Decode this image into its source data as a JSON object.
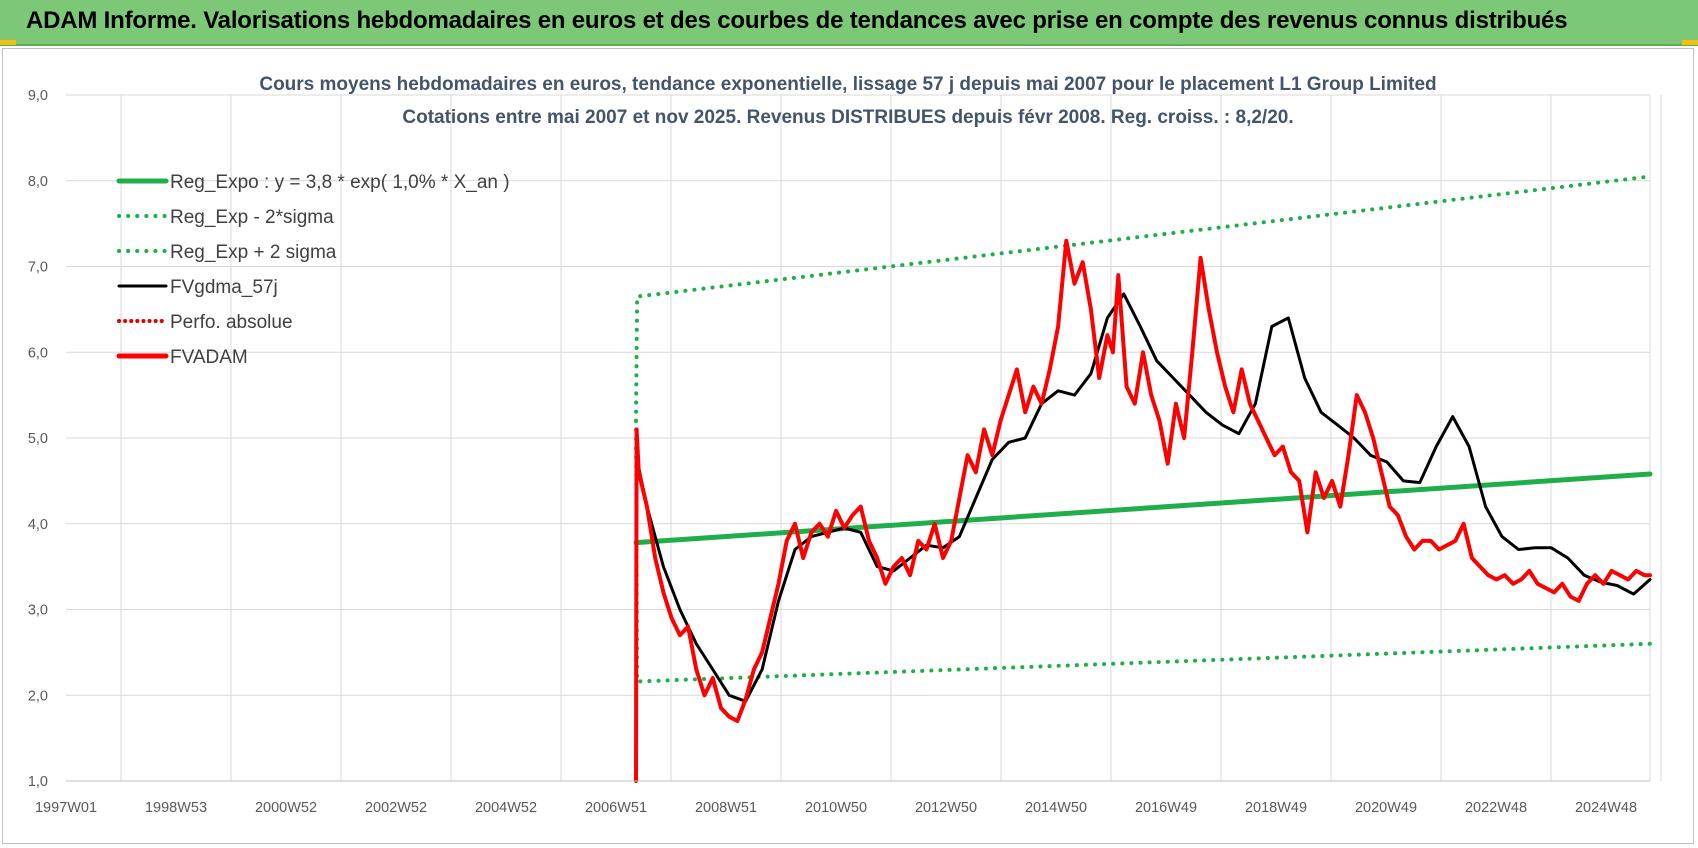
{
  "banner": {
    "title": "ADAM Informe. Valorisations hebdomadaires en euros et des courbes de tendances avec prise en compte des revenus connus distribués"
  },
  "colors": {
    "banner": "#7dc876",
    "reg_expo": "#1fae4a",
    "sigma": "#1fae4a",
    "fvgdma": "#000000",
    "perfo": "#e00000",
    "fvadam": "#ff0000",
    "grid": "#d9d9d9"
  },
  "chart_data": {
    "type": "line",
    "title": "Cours moyens hebdomadaires en euros, tendance exponentielle, lissage 57 j depuis mai 2007 pour le placement L1 Group Limited",
    "subtitle": "Cotations entre mai 2007 et nov 2025. Revenus DISTRIBUES depuis févr 2008. Reg. croiss. : 8,2/20.",
    "x_tick_labels": [
      "1997W01",
      "1998W53",
      "2000W52",
      "2002W52",
      "2004W52",
      "2006W51",
      "2008W51",
      "2010W50",
      "2012W50",
      "2014W50",
      "2016W49",
      "2018W49",
      "2020W49",
      "2022W48",
      "2024W48"
    ],
    "x_range": [
      1997.0,
      2025.9
    ],
    "ylim": [
      1.0,
      9.0
    ],
    "y_tick_labels": [
      "1,0",
      "2,0",
      "3,0",
      "4,0",
      "5,0",
      "6,0",
      "7,0",
      "8,0",
      "9,0"
    ],
    "y_ticks": [
      1,
      2,
      3,
      4,
      5,
      6,
      7,
      8,
      9
    ],
    "grid": true,
    "legend_position": "top-left",
    "series": [
      {
        "name": "Reg_Expo : y = 3,8 * exp( 1,0% *  X_an )",
        "style": "solid-thick",
        "x": [
          2007.4,
          2025.9
        ],
        "y": [
          3.78,
          4.58
        ]
      },
      {
        "name": "Reg_Exp - 2*sigma",
        "style": "dotted",
        "x": [
          2007.4,
          2007.42,
          2025.9
        ],
        "y": [
          5.2,
          2.16,
          2.6
        ]
      },
      {
        "name": "Reg_Exp + 2 sigma",
        "style": "dotted",
        "x": [
          2007.4,
          2007.42,
          2025.9
        ],
        "y": [
          5.2,
          6.65,
          8.05
        ]
      },
      {
        "name": "FVgdma_57j",
        "style": "solid",
        "x": [
          2007.4,
          2007.6,
          2007.9,
          2008.2,
          2008.5,
          2008.8,
          2009.1,
          2009.4,
          2009.7,
          2010.0,
          2010.3,
          2010.6,
          2010.9,
          2011.2,
          2011.5,
          2011.8,
          2012.1,
          2012.4,
          2012.7,
          2013.0,
          2013.3,
          2013.6,
          2013.9,
          2014.2,
          2014.5,
          2014.8,
          2015.1,
          2015.4,
          2015.7,
          2016.0,
          2016.3,
          2016.6,
          2016.9,
          2017.2,
          2017.5,
          2017.8,
          2018.1,
          2018.4,
          2018.7,
          2019.0,
          2019.3,
          2019.6,
          2019.9,
          2020.2,
          2020.5,
          2020.8,
          2021.1,
          2021.4,
          2021.7,
          2022.0,
          2022.3,
          2022.6,
          2022.9,
          2023.2,
          2023.5,
          2023.8,
          2024.1,
          2024.4,
          2024.7,
          2025.0,
          2025.3,
          2025.6,
          2025.9
        ],
        "y": [
          4.8,
          4.2,
          3.5,
          3.0,
          2.6,
          2.3,
          2.0,
          1.93,
          2.3,
          3.1,
          3.7,
          3.85,
          3.9,
          3.95,
          3.9,
          3.5,
          3.45,
          3.6,
          3.75,
          3.72,
          3.85,
          4.3,
          4.75,
          4.95,
          5.0,
          5.4,
          5.55,
          5.5,
          5.75,
          6.4,
          6.68,
          6.3,
          5.9,
          5.7,
          5.5,
          5.3,
          5.15,
          5.05,
          5.4,
          6.3,
          6.4,
          5.7,
          5.3,
          5.15,
          5.0,
          4.8,
          4.72,
          4.5,
          4.48,
          4.9,
          5.25,
          4.9,
          4.2,
          3.85,
          3.7,
          3.72,
          3.72,
          3.6,
          3.4,
          3.32,
          3.28,
          3.18,
          3.35
        ]
      },
      {
        "name": "Perfo. absolue",
        "style": "dotted",
        "x": [],
        "y": []
      },
      {
        "name": "FVADAM",
        "style": "solid-thick",
        "x": [
          2007.4,
          2007.41,
          2007.45,
          2007.6,
          2007.75,
          2007.9,
          2008.05,
          2008.2,
          2008.35,
          2008.5,
          2008.65,
          2008.8,
          2008.95,
          2009.1,
          2009.25,
          2009.4,
          2009.55,
          2009.7,
          2009.85,
          2010.0,
          2010.15,
          2010.3,
          2010.45,
          2010.6,
          2010.75,
          2010.9,
          2011.05,
          2011.2,
          2011.35,
          2011.5,
          2011.65,
          2011.8,
          2011.95,
          2012.1,
          2012.25,
          2012.4,
          2012.55,
          2012.7,
          2012.85,
          2013.0,
          2013.15,
          2013.3,
          2013.45,
          2013.6,
          2013.75,
          2013.9,
          2014.05,
          2014.2,
          2014.35,
          2014.5,
          2014.65,
          2014.8,
          2014.95,
          2015.1,
          2015.25,
          2015.4,
          2015.55,
          2015.7,
          2015.85,
          2016.0,
          2016.1,
          2016.2,
          2016.35,
          2016.5,
          2016.65,
          2016.8,
          2016.95,
          2017.1,
          2017.25,
          2017.4,
          2017.55,
          2017.7,
          2017.85,
          2018.0,
          2018.15,
          2018.3,
          2018.45,
          2018.6,
          2018.75,
          2018.9,
          2019.05,
          2019.2,
          2019.35,
          2019.5,
          2019.65,
          2019.8,
          2019.95,
          2020.1,
          2020.25,
          2020.4,
          2020.55,
          2020.7,
          2020.85,
          2021.0,
          2021.15,
          2021.3,
          2021.45,
          2021.6,
          2021.75,
          2021.9,
          2022.05,
          2022.2,
          2022.35,
          2022.5,
          2022.65,
          2022.8,
          2022.95,
          2023.1,
          2023.25,
          2023.4,
          2023.55,
          2023.7,
          2023.85,
          2024.0,
          2024.15,
          2024.3,
          2024.45,
          2024.6,
          2024.75,
          2024.9,
          2025.05,
          2025.2,
          2025.35,
          2025.5,
          2025.65,
          2025.8,
          2025.9
        ],
        "y": [
          1.0,
          5.1,
          4.6,
          4.2,
          3.6,
          3.2,
          2.9,
          2.7,
          2.8,
          2.3,
          2.0,
          2.2,
          1.85,
          1.75,
          1.7,
          1.95,
          2.3,
          2.5,
          2.9,
          3.3,
          3.8,
          4.0,
          3.6,
          3.9,
          4.0,
          3.85,
          4.15,
          3.95,
          4.1,
          4.2,
          3.8,
          3.6,
          3.3,
          3.5,
          3.6,
          3.4,
          3.8,
          3.7,
          4.0,
          3.6,
          3.8,
          4.3,
          4.8,
          4.6,
          5.1,
          4.8,
          5.2,
          5.5,
          5.8,
          5.3,
          5.6,
          5.4,
          5.8,
          6.3,
          7.3,
          6.8,
          7.05,
          6.5,
          5.7,
          6.2,
          6.0,
          6.9,
          5.6,
          5.4,
          6.0,
          5.5,
          5.2,
          4.7,
          5.4,
          5.0,
          6.0,
          7.1,
          6.5,
          6.0,
          5.6,
          5.3,
          5.8,
          5.4,
          5.2,
          5.0,
          4.8,
          4.9,
          4.6,
          4.5,
          3.9,
          4.6,
          4.3,
          4.5,
          4.2,
          4.8,
          5.5,
          5.3,
          5.0,
          4.6,
          4.2,
          4.1,
          3.85,
          3.7,
          3.8,
          3.8,
          3.7,
          3.75,
          3.8,
          4.0,
          3.6,
          3.5,
          3.4,
          3.35,
          3.4,
          3.3,
          3.35,
          3.45,
          3.3,
          3.25,
          3.2,
          3.3,
          3.15,
          3.1,
          3.3,
          3.4,
          3.3,
          3.45,
          3.4,
          3.35,
          3.45,
          3.4,
          3.4
        ]
      }
    ]
  }
}
